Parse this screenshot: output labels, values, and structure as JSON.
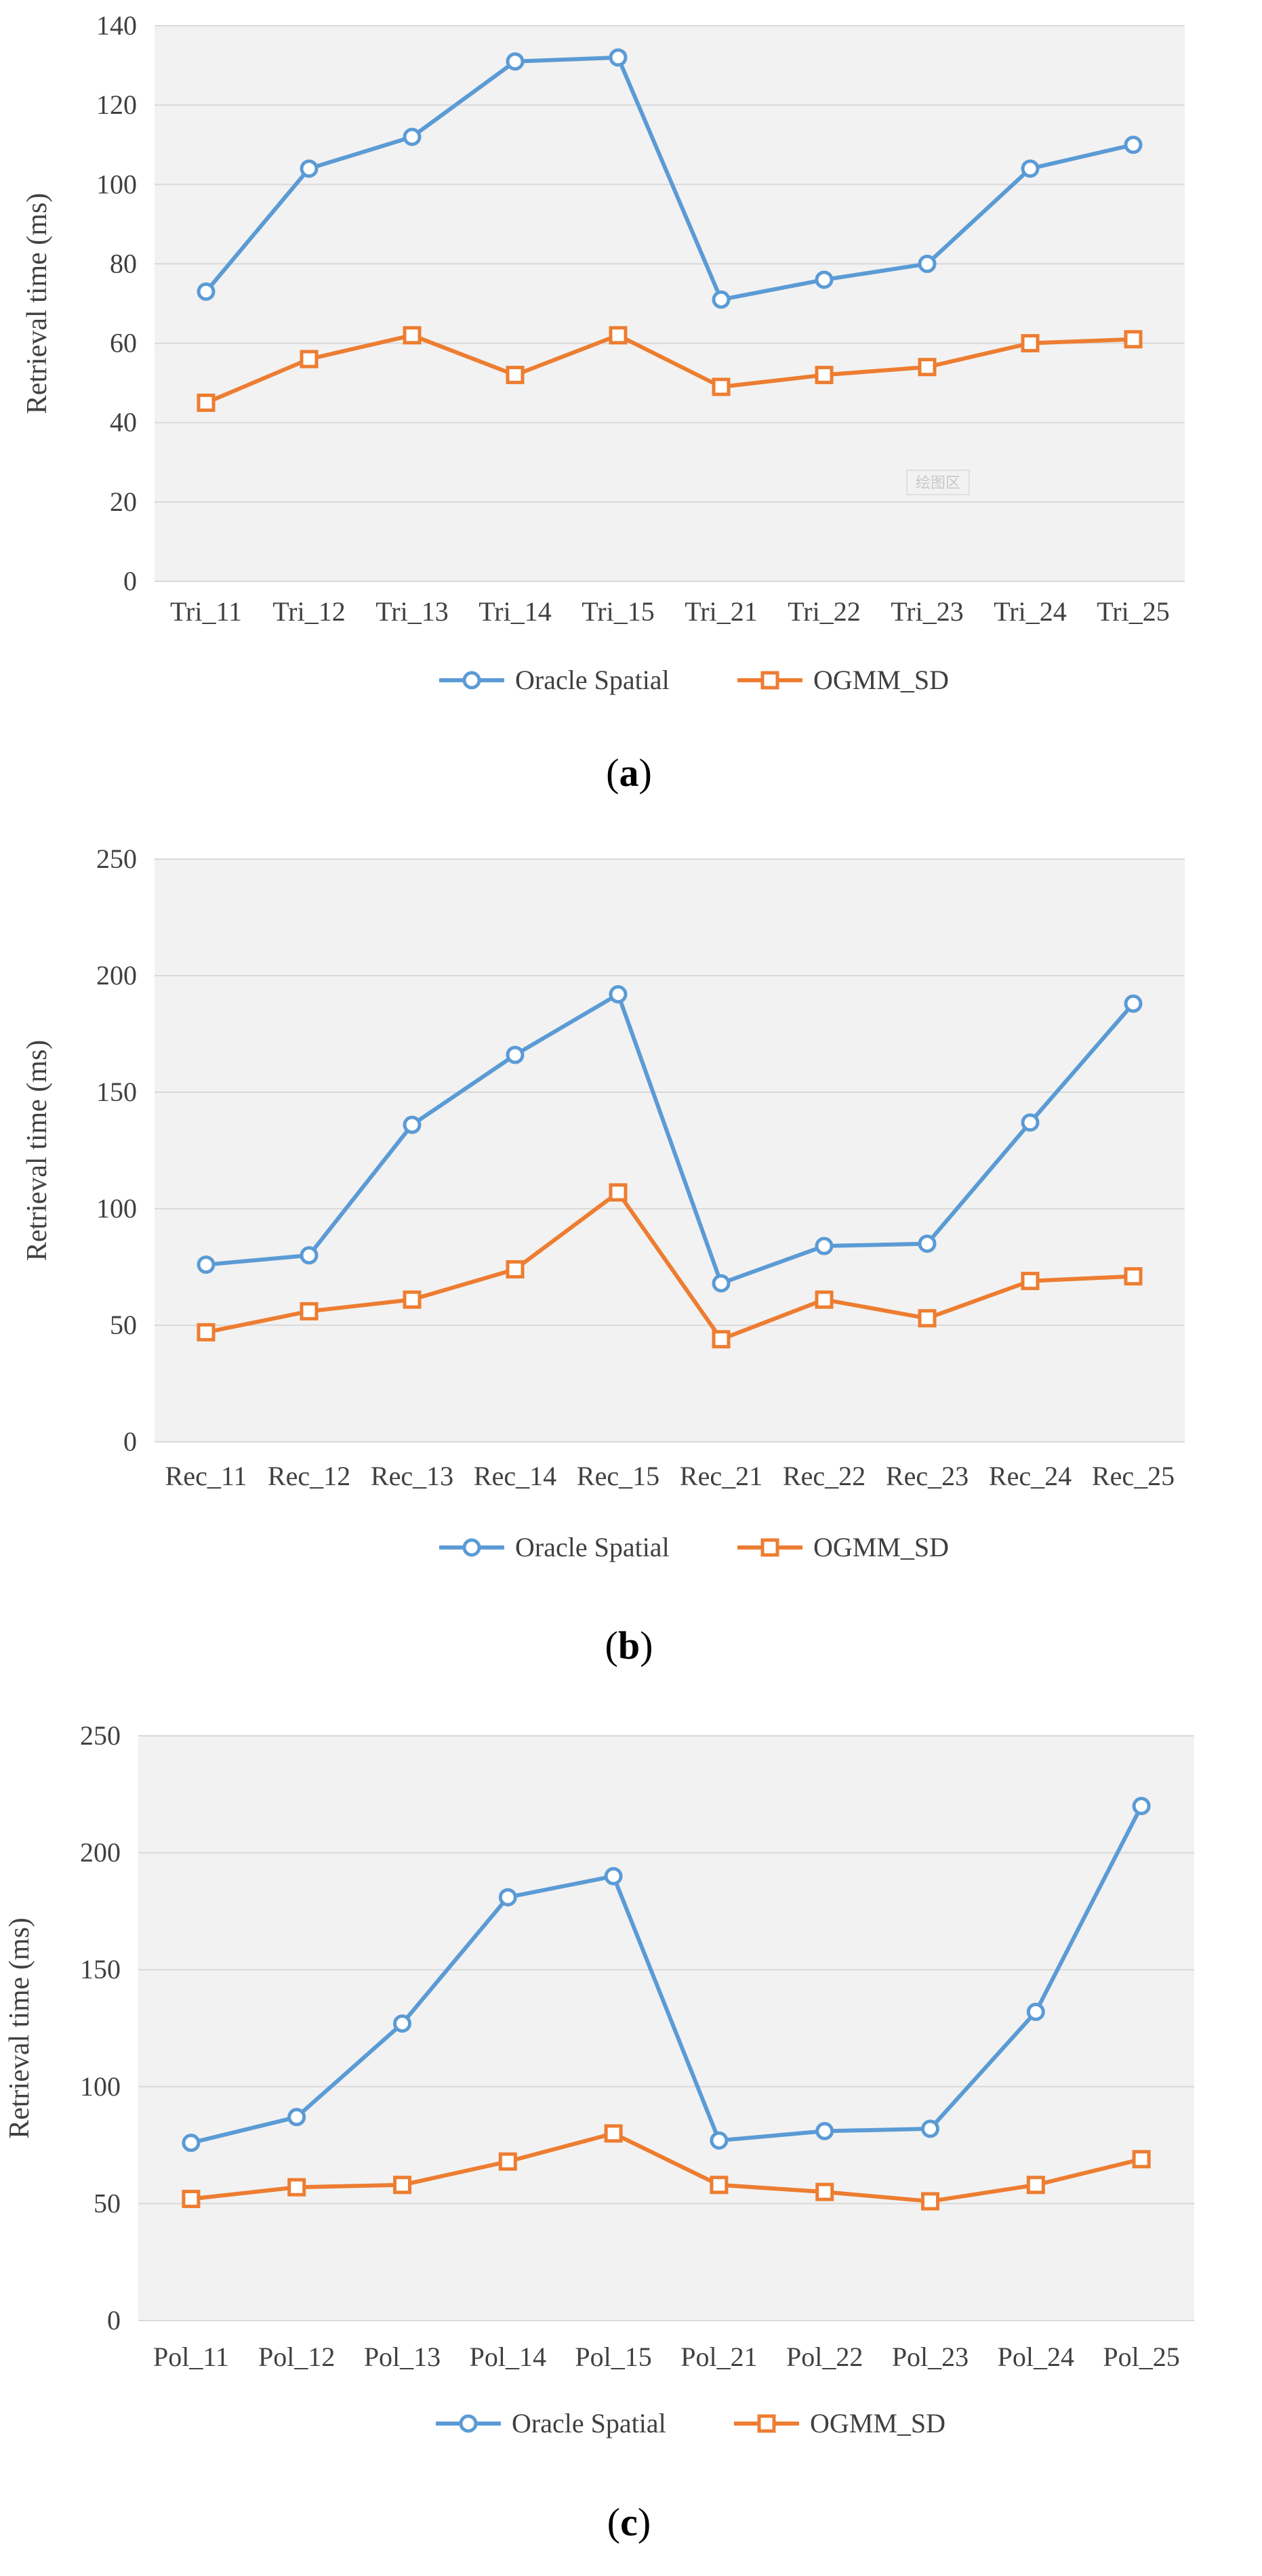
{
  "colors": {
    "oracle": "#5b9bd5",
    "ogmm": "#ed7d31",
    "plot_bg": "#f2f2f2",
    "grid": "#d9d9d9"
  },
  "chart_data": [
    {
      "type": "line",
      "caption_letter": "a",
      "ylabel": "Retrieval time (ms)",
      "ylim": [
        0,
        140
      ],
      "yticks": [
        0,
        20,
        40,
        60,
        80,
        100,
        120,
        140
      ],
      "categories": [
        "Tri_11",
        "Tri_12",
        "Tri_13",
        "Tri_14",
        "Tri_15",
        "Tri_21",
        "Tri_22",
        "Tri_23",
        "Tri_24",
        "Tri_25"
      ],
      "series": [
        {
          "name": "Oracle Spatial",
          "marker": "circle",
          "values": [
            73,
            104,
            112,
            131,
            132,
            71,
            76,
            80,
            104,
            110
          ]
        },
        {
          "name": "OGMM_SD",
          "marker": "square",
          "values": [
            45,
            56,
            62,
            52,
            62,
            49,
            52,
            54,
            60,
            61
          ]
        }
      ],
      "grid": true,
      "legend": "bottom",
      "watermark": "绘图区"
    },
    {
      "type": "line",
      "caption_letter": "b",
      "ylabel": "Retrieval time (ms)",
      "ylim": [
        0,
        250
      ],
      "yticks": [
        0,
        50,
        100,
        150,
        200,
        250
      ],
      "categories": [
        "Rec_11",
        "Rec_12",
        "Rec_13",
        "Rec_14",
        "Rec_15",
        "Rec_21",
        "Rec_22",
        "Rec_23",
        "Rec_24",
        "Rec_25"
      ],
      "series": [
        {
          "name": "Oracle Spatial",
          "marker": "circle",
          "values": [
            76,
            80,
            136,
            166,
            192,
            68,
            84,
            85,
            137,
            188
          ]
        },
        {
          "name": "OGMM_SD",
          "marker": "square",
          "values": [
            47,
            56,
            61,
            74,
            107,
            44,
            61,
            53,
            69,
            71
          ]
        }
      ],
      "grid": true,
      "legend": "bottom"
    },
    {
      "type": "line",
      "caption_letter": "c",
      "ylabel": "Retrieval time (ms)",
      "ylim": [
        0,
        250
      ],
      "yticks": [
        0,
        50,
        100,
        150,
        200,
        250
      ],
      "categories": [
        "Pol_11",
        "Pol_12",
        "Pol_13",
        "Pol_14",
        "Pol_15",
        "Pol_21",
        "Pol_22",
        "Pol_23",
        "Pol_24",
        "Pol_25"
      ],
      "series": [
        {
          "name": "Oracle Spatial",
          "marker": "circle",
          "values": [
            76,
            87,
            127,
            181,
            190,
            77,
            81,
            82,
            132,
            220
          ]
        },
        {
          "name": "OGMM_SD",
          "marker": "square",
          "values": [
            52,
            57,
            58,
            68,
            80,
            58,
            55,
            51,
            58,
            69
          ]
        }
      ],
      "grid": true,
      "legend": "bottom"
    }
  ]
}
